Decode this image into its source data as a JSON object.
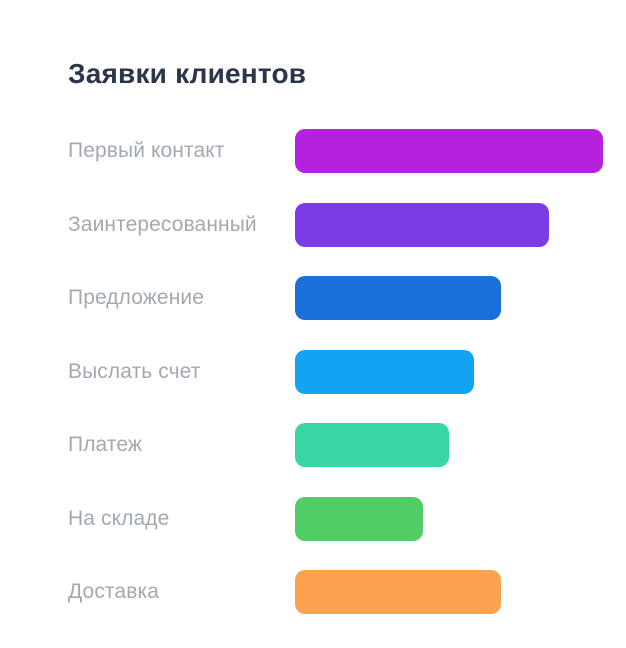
{
  "chart_data": {
    "type": "bar",
    "orientation": "horizontal",
    "title": "Заявки клиентов",
    "categories": [
      "Первый контакт",
      "Заинтересованный",
      "Предложение",
      "Выслать счет",
      "Платеж",
      "На складе",
      "Доставка"
    ],
    "values": [
      308,
      254,
      206,
      179,
      154,
      128,
      206
    ],
    "value_unit": "relative bar length in px (no numeric data labels shown on chart)",
    "max_value": 308,
    "colors": [
      "#b621de",
      "#7d3be8",
      "#1b6fd8",
      "#12a3f2",
      "#38d5a6",
      "#51cd66",
      "#faa24d"
    ],
    "legend": "none",
    "grid": false,
    "axis_labels": "none",
    "background_color": "#ffffff",
    "title_color": "#2b3648",
    "label_color": "#a3a9b2"
  }
}
